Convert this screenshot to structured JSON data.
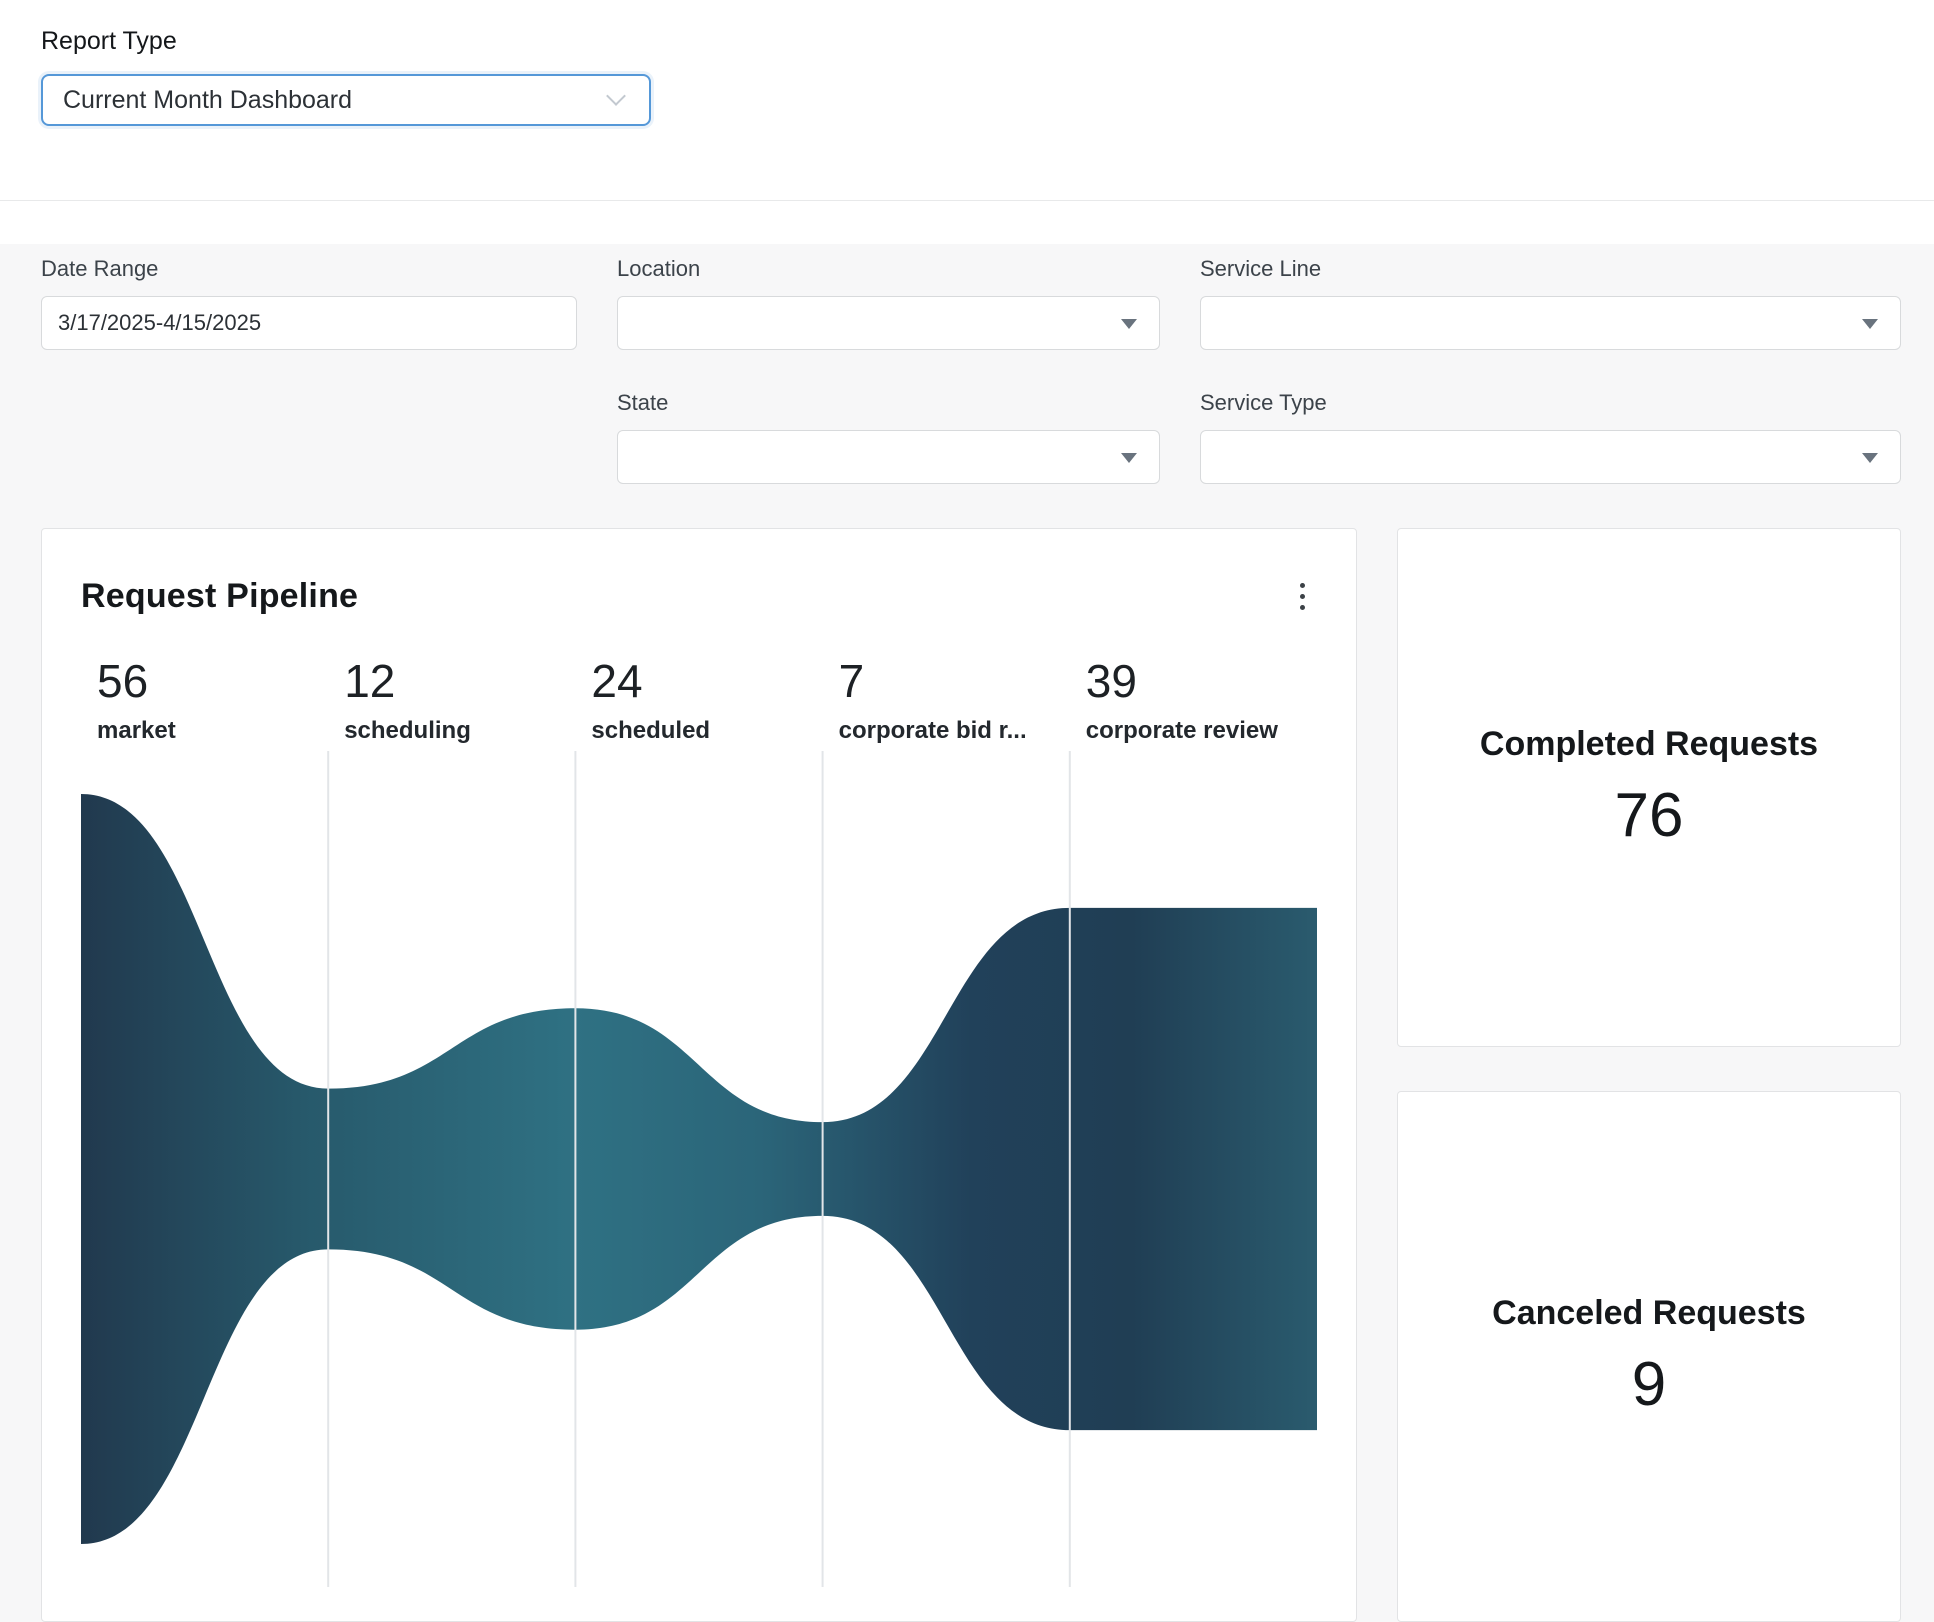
{
  "report_type": {
    "label": "Report Type",
    "value": "Current Month Dashboard"
  },
  "filters": {
    "date_range": {
      "label": "Date Range",
      "value": "3/17/2025-4/15/2025"
    },
    "location": {
      "label": "Location",
      "value": ""
    },
    "service_line": {
      "label": "Service Line",
      "value": ""
    },
    "state": {
      "label": "State",
      "value": ""
    },
    "service_type": {
      "label": "Service Type",
      "value": ""
    }
  },
  "pipeline": {
    "title": "Request Pipeline"
  },
  "chart_data": {
    "type": "area",
    "variant": "funnel",
    "title": "Request Pipeline",
    "stages": [
      {
        "label": "market",
        "value": 56
      },
      {
        "label": "scheduling",
        "value": 12
      },
      {
        "label": "scheduled",
        "value": 24
      },
      {
        "label": "corporate bid r...",
        "value": 7
      },
      {
        "label": "corporate review",
        "value": 39
      }
    ],
    "max_value": 56,
    "layout": {
      "equal_columns": true,
      "last_stage_flat": true,
      "separators": true,
      "legend": "none",
      "grid": "off"
    },
    "colors": {
      "gradient_stops": [
        {
          "offset": 0.0,
          "color": "#21394e"
        },
        {
          "offset": 0.18,
          "color": "#27596b"
        },
        {
          "offset": 0.4,
          "color": "#2f7183"
        },
        {
          "offset": 0.55,
          "color": "#2b6579"
        },
        {
          "offset": 0.72,
          "color": "#21415a"
        },
        {
          "offset": 0.85,
          "color": "#203e54"
        },
        {
          "offset": 1.0,
          "color": "#2a5b6e"
        }
      ],
      "separator": "#e2e5e8"
    }
  },
  "summary_cards": [
    {
      "title": "Completed Requests",
      "value": 76
    },
    {
      "title": "Canceled Requests",
      "value": 9
    }
  ]
}
